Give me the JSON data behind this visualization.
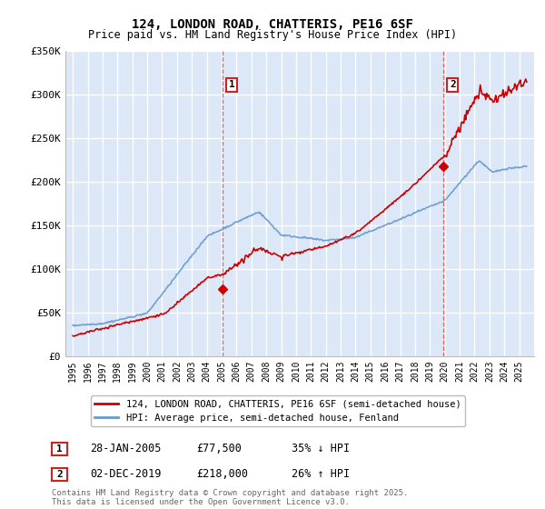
{
  "title": "124, LONDON ROAD, CHATTERIS, PE16 6SF",
  "subtitle": "Price paid vs. HM Land Registry's House Price Index (HPI)",
  "legend_line1": "124, LONDON ROAD, CHATTERIS, PE16 6SF (semi-detached house)",
  "legend_line2": "HPI: Average price, semi-detached house, Fenland",
  "sale1_date": "28-JAN-2005",
  "sale1_price": "£77,500",
  "sale1_pct": "35% ↓ HPI",
  "sale1_year": 2005.08,
  "sale1_value": 77500,
  "sale2_date": "02-DEC-2019",
  "sale2_price": "£218,000",
  "sale2_pct": "26% ↑ HPI",
  "sale2_year": 2019.92,
  "sale2_value": 218000,
  "ylim": [
    0,
    350000
  ],
  "yticks": [
    0,
    50000,
    100000,
    150000,
    200000,
    250000,
    300000,
    350000
  ],
  "ytick_labels": [
    "£0",
    "£50K",
    "£100K",
    "£150K",
    "£200K",
    "£250K",
    "£300K",
    "£350K"
  ],
  "line_color_red": "#cc0000",
  "line_color_blue": "#6699cc",
  "bg_color": "#dce8f8",
  "grid_color": "#ffffff",
  "footnote": "Contains HM Land Registry data © Crown copyright and database right 2025.\nThis data is licensed under the Open Government Licence v3.0."
}
